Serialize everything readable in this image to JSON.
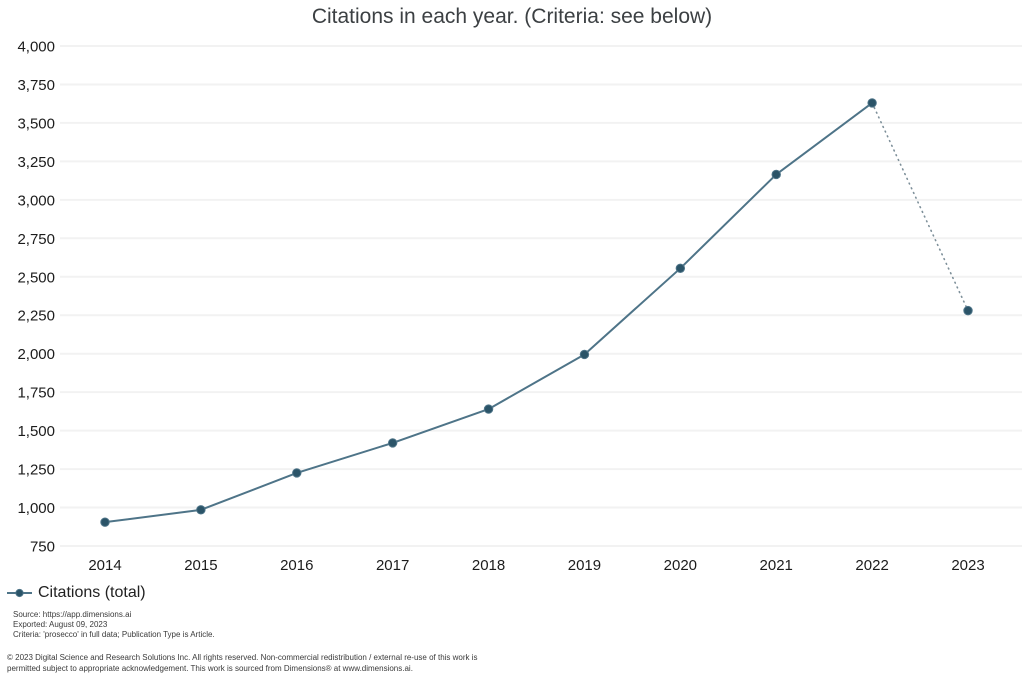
{
  "title": "Citations in each year. (Criteria: see below)",
  "legend": {
    "label": "Citations (total)"
  },
  "chart_data": {
    "type": "line",
    "title": "Citations in each year. (Criteria: see below)",
    "categories": [
      "2014",
      "2015",
      "2016",
      "2017",
      "2018",
      "2019",
      "2020",
      "2021",
      "2022",
      "2023"
    ],
    "series": [
      {
        "name": "Citations (total)",
        "values": [
          905,
          985,
          1225,
          1420,
          1640,
          1995,
          2555,
          3165,
          3630,
          2280
        ],
        "dotted_from_index": 8
      }
    ],
    "ylim": [
      750,
      4000
    ],
    "ytick_labels": [
      "750",
      "1,000",
      "1,250",
      "1,500",
      "1,750",
      "2,000",
      "2,250",
      "2,500",
      "2,750",
      "3,000",
      "3,250",
      "3,500",
      "3,750",
      "4,000"
    ],
    "grid": "horizontal",
    "legend_position": "bottom-left"
  },
  "colors": {
    "line": "#4e7488",
    "marker": "#2b5468",
    "dotted": "#7d8f99",
    "grid": "#f2f2f2",
    "tick_text": "#1c1c1c",
    "title_text": "#3c4043",
    "footer_text": "#3a3a3a"
  },
  "footer": {
    "lines": [
      "Source: https://app.dimensions.ai",
      "Exported: August 09, 2023",
      "Criteria: 'prosecco' in full data; Publication Type is Article."
    ]
  },
  "copyright": {
    "lines": [
      "© 2023 Digital Science and Research Solutions Inc. All rights reserved. Non-commercial redistribution / external re-use of this work is",
      "permitted subject to appropriate acknowledgement. This work is sourced from Dimensions® at www.dimensions.ai."
    ]
  }
}
